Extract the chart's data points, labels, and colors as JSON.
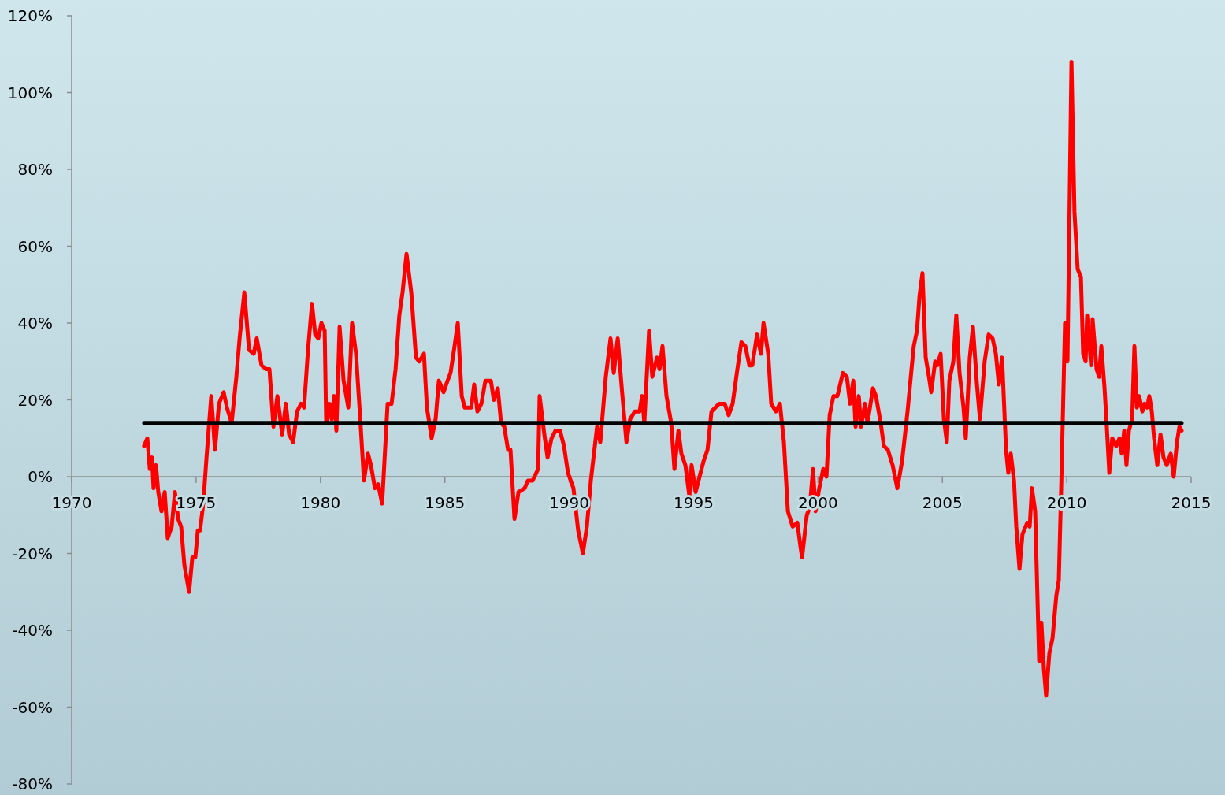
{
  "chart_data": {
    "type": "line",
    "xlim": [
      1970,
      2015
    ],
    "xticks": [
      1970,
      1975,
      1980,
      1985,
      1990,
      1995,
      2000,
      2005,
      2010,
      2015
    ],
    "ylim": [
      -80,
      120
    ],
    "yticks": [
      {
        "value": -80,
        "label": "-80%"
      },
      {
        "value": -60,
        "label": "-60%"
      },
      {
        "value": -40,
        "label": "-40%"
      },
      {
        "value": -20,
        "label": "-20%"
      },
      {
        "value": 0,
        "label": "0%"
      },
      {
        "value": 20,
        "label": "20%"
      },
      {
        "value": 40,
        "label": "40%"
      },
      {
        "value": 60,
        "label": "60%"
      },
      {
        "value": 80,
        "label": "80%"
      },
      {
        "value": 100,
        "label": "100%"
      },
      {
        "value": 120,
        "label": "120%"
      }
    ],
    "grid": false,
    "marker": "none",
    "line_style": "solid",
    "series": [
      {
        "color": "#ff0000",
        "x": [
          1972.91,
          1973.04,
          1973.14,
          1973.23,
          1973.29,
          1973.39,
          1973.48,
          1973.61,
          1973.74,
          1973.86,
          1974.02,
          1974.15,
          1974.28,
          1974.4,
          1974.53,
          1974.72,
          1974.85,
          1974.97,
          1975.07,
          1975.16,
          1975.29,
          1975.42,
          1975.61,
          1975.76,
          1975.92,
          1976.11,
          1976.24,
          1976.43,
          1976.62,
          1976.75,
          1976.94,
          1977.13,
          1977.32,
          1977.44,
          1977.63,
          1977.82,
          1977.95,
          1978.11,
          1978.27,
          1978.46,
          1978.61,
          1978.74,
          1978.9,
          1979.06,
          1979.22,
          1979.34,
          1979.5,
          1979.66,
          1979.79,
          1979.91,
          1980.04,
          1980.17,
          1980.23,
          1980.36,
          1980.45,
          1980.55,
          1980.64,
          1980.77,
          1980.93,
          1981.12,
          1981.27,
          1981.43,
          1981.59,
          1981.75,
          1981.91,
          1982.03,
          1982.19,
          1982.32,
          1982.48,
          1982.7,
          1982.86,
          1983.02,
          1983.17,
          1983.3,
          1983.46,
          1983.65,
          1983.84,
          1983.97,
          1984.16,
          1984.28,
          1984.47,
          1984.63,
          1984.76,
          1984.95,
          1985.11,
          1985.23,
          1985.39,
          1985.52,
          1985.68,
          1985.8,
          1986.06,
          1986.18,
          1986.31,
          1986.47,
          1986.63,
          1986.85,
          1986.97,
          1987.13,
          1987.26,
          1987.39,
          1987.54,
          1987.64,
          1987.8,
          1987.96,
          1988.21,
          1988.34,
          1988.53,
          1988.75,
          1988.81,
          1989.0,
          1989.13,
          1989.29,
          1989.45,
          1989.63,
          1989.79,
          1989.95,
          1990.17,
          1990.36,
          1990.55,
          1990.71,
          1990.87,
          1991.12,
          1991.25,
          1991.47,
          1991.66,
          1991.79,
          1991.95,
          1992.1,
          1992.3,
          1992.45,
          1992.64,
          1992.83,
          1992.93,
          1993.02,
          1993.21,
          1993.34,
          1993.53,
          1993.63,
          1993.75,
          1993.91,
          1994.1,
          1994.23,
          1994.39,
          1994.51,
          1994.67,
          1994.83,
          1994.92,
          1995.08,
          1995.24,
          1995.4,
          1995.56,
          1995.72,
          1996.03,
          1996.25,
          1996.41,
          1996.57,
          1996.76,
          1996.92,
          1997.08,
          1997.24,
          1997.36,
          1997.55,
          1997.71,
          1997.81,
          1998.0,
          1998.12,
          1998.31,
          1998.47,
          1998.63,
          1998.79,
          1998.98,
          1999.17,
          1999.29,
          1999.36,
          1999.55,
          1999.67,
          1999.8,
          1999.9,
          2000.05,
          2000.21,
          2000.34,
          2000.47,
          2000.62,
          2000.78,
          2001.0,
          2001.16,
          2001.29,
          2001.42,
          2001.51,
          2001.64,
          2001.73,
          2001.89,
          2001.99,
          2002.21,
          2002.33,
          2002.52,
          2002.65,
          2002.81,
          2003.0,
          2003.19,
          2003.38,
          2003.6,
          2003.76,
          2003.85,
          2003.98,
          2004.08,
          2004.2,
          2004.33,
          2004.46,
          2004.55,
          2004.71,
          2004.8,
          2004.93,
          2005.06,
          2005.18,
          2005.28,
          2005.44,
          2005.56,
          2005.69,
          2005.85,
          2005.94,
          2006.1,
          2006.23,
          2006.39,
          2006.51,
          2006.7,
          2006.86,
          2007.02,
          2007.15,
          2007.27,
          2007.4,
          2007.56,
          2007.65,
          2007.75,
          2007.88,
          2007.97,
          2008.1,
          2008.22,
          2008.41,
          2008.51,
          2008.6,
          2008.73,
          2008.89,
          2008.98,
          2009.08,
          2009.17,
          2009.3,
          2009.43,
          2009.58,
          2009.68,
          2009.78,
          2009.93,
          2010.03,
          2010.19,
          2010.31,
          2010.44,
          2010.57,
          2010.66,
          2010.76,
          2010.82,
          2010.98,
          2011.04,
          2011.2,
          2011.3,
          2011.39,
          2011.52,
          2011.61,
          2011.71,
          2011.83,
          2011.99,
          2012.12,
          2012.21,
          2012.31,
          2012.4,
          2012.5,
          2012.63,
          2012.72,
          2012.82,
          2012.91,
          2013.04,
          2013.13,
          2013.23,
          2013.32,
          2013.42,
          2013.51,
          2013.64,
          2013.77,
          2013.89,
          2014.02,
          2014.18,
          2014.3,
          2014.43,
          2014.53,
          2014.62
        ],
        "values": [
          8,
          10,
          2,
          5,
          -3,
          3,
          -4,
          -9,
          -4,
          -16,
          -13,
          -4,
          -11,
          -13,
          -23,
          -30,
          -21,
          -21,
          -14,
          -14,
          -7,
          5,
          21,
          7,
          19,
          22,
          18,
          14,
          26,
          36,
          48,
          33,
          32,
          36,
          29,
          28,
          28,
          13,
          21,
          11,
          19,
          11,
          9,
          17,
          19,
          18,
          33,
          45,
          37,
          36,
          40,
          38,
          14,
          19,
          15,
          21,
          12,
          39,
          25,
          18,
          40,
          32,
          16,
          -1,
          6,
          3,
          -3,
          -2,
          -7,
          19,
          19,
          28,
          42,
          48,
          58,
          48,
          31,
          30,
          32,
          18,
          10,
          15,
          25,
          22,
          25,
          27,
          34,
          40,
          21,
          18,
          18,
          24,
          17,
          19,
          25,
          25,
          20,
          23,
          14,
          13,
          7,
          7,
          -11,
          -4,
          -3,
          -1,
          -1,
          2,
          21,
          11,
          5,
          10,
          12,
          12,
          8,
          1,
          -3,
          -14,
          -20,
          -13,
          -1,
          13,
          9,
          26,
          36,
          27,
          36,
          24,
          9,
          15,
          17,
          17,
          21,
          14,
          38,
          26,
          31,
          28,
          34,
          21,
          14,
          2,
          12,
          6,
          3,
          -5,
          3,
          -4,
          0,
          4,
          7,
          17,
          19,
          19,
          16,
          19,
          28,
          35,
          34,
          29,
          29,
          37,
          32,
          40,
          32,
          19,
          17,
          19,
          9,
          -9,
          -13,
          -12,
          -18,
          -21,
          -10,
          -8,
          2,
          -9,
          -3,
          2,
          0,
          16,
          21,
          21,
          27,
          26,
          19,
          25,
          13,
          21,
          13,
          19,
          14,
          23,
          21,
          14,
          8,
          7,
          3,
          -3,
          4,
          17,
          28,
          34,
          38,
          47,
          53,
          31,
          26,
          22,
          30,
          29,
          32,
          15,
          9,
          25,
          30,
          42,
          27,
          18,
          10,
          31,
          39,
          24,
          15,
          30,
          37,
          36,
          32,
          24,
          31,
          7,
          1,
          6,
          -1,
          -13,
          -24,
          -15,
          -12,
          -13,
          -3,
          -9,
          -48,
          -38,
          -50,
          -57,
          -46,
          -42,
          -31,
          -27,
          -2,
          40,
          30,
          108,
          69,
          54,
          52,
          32,
          30,
          42,
          29,
          41,
          28,
          26,
          34,
          23,
          13,
          1,
          10,
          8,
          10,
          6,
          12,
          3,
          12,
          15,
          34,
          18,
          21,
          17,
          19,
          18,
          21,
          17,
          10,
          3,
          11,
          5,
          3,
          6,
          0,
          9,
          13,
          12
        ]
      },
      {
        "color": "#000000",
        "x": [
          1972.91,
          2014.62
        ],
        "values": [
          14,
          14
        ]
      }
    ]
  }
}
